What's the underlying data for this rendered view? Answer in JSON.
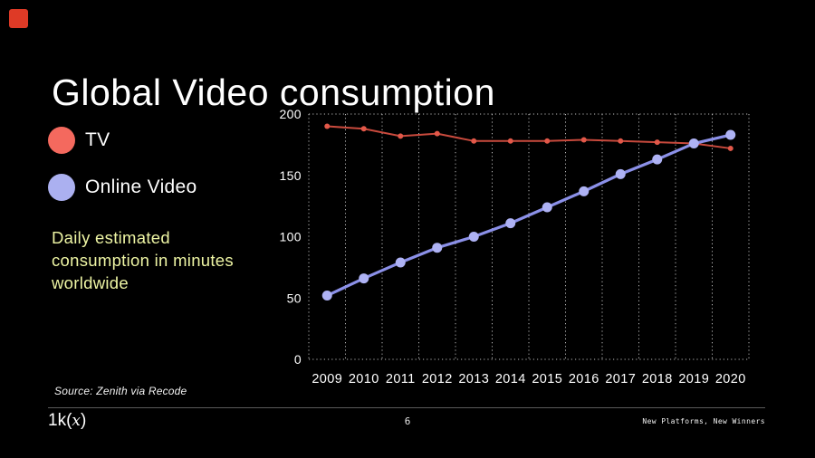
{
  "slide": {
    "title": "Global Video consumption",
    "accent_square_color": "#de3a26",
    "note_lines": [
      "Daily estimated",
      "consumption in minutes",
      "worldwide"
    ],
    "note_color": "#eef5a4",
    "source": "Source: Zenith via Recode",
    "footer": {
      "logo_pre": "1k(",
      "logo_x": "x",
      "logo_post": ")",
      "page_number": "6",
      "deck_title": "New Platforms, New Winners"
    }
  },
  "legend": [
    {
      "label": "TV",
      "color": "#f4695e"
    },
    {
      "label": "Online Video",
      "color": "#abb0f0"
    }
  ],
  "chart_data": {
    "type": "line",
    "title": "Global Video consumption",
    "xlabel": "",
    "ylabel": "Daily estimated consumption in minutes worldwide",
    "categories": [
      "2009",
      "2010",
      "2011",
      "2012",
      "2013",
      "2014",
      "2015",
      "2016",
      "2017",
      "2018",
      "2019",
      "2020"
    ],
    "series": [
      {
        "name": "TV",
        "values": [
          190,
          188,
          182,
          184,
          178,
          178,
          178,
          179,
          178,
          177,
          176,
          172
        ],
        "line_color": "#c94a3d",
        "point_color": "#e25849",
        "line_width": 2,
        "point_radius": 3
      },
      {
        "name": "Online Video",
        "values": [
          52,
          66,
          79,
          91,
          100,
          111,
          124,
          137,
          151,
          163,
          176,
          183
        ],
        "line_color": "#8b90e8",
        "point_color": "#aeb2f4",
        "line_width": 3.2,
        "point_radius": 5.5
      }
    ],
    "ylim": [
      0,
      200
    ],
    "y_ticks": [
      200,
      150,
      100,
      50,
      0
    ],
    "grid": "dotted vertical lines at category boundaries; dotted horizontal lines at 0 and 200 only",
    "legend_position": "left"
  }
}
